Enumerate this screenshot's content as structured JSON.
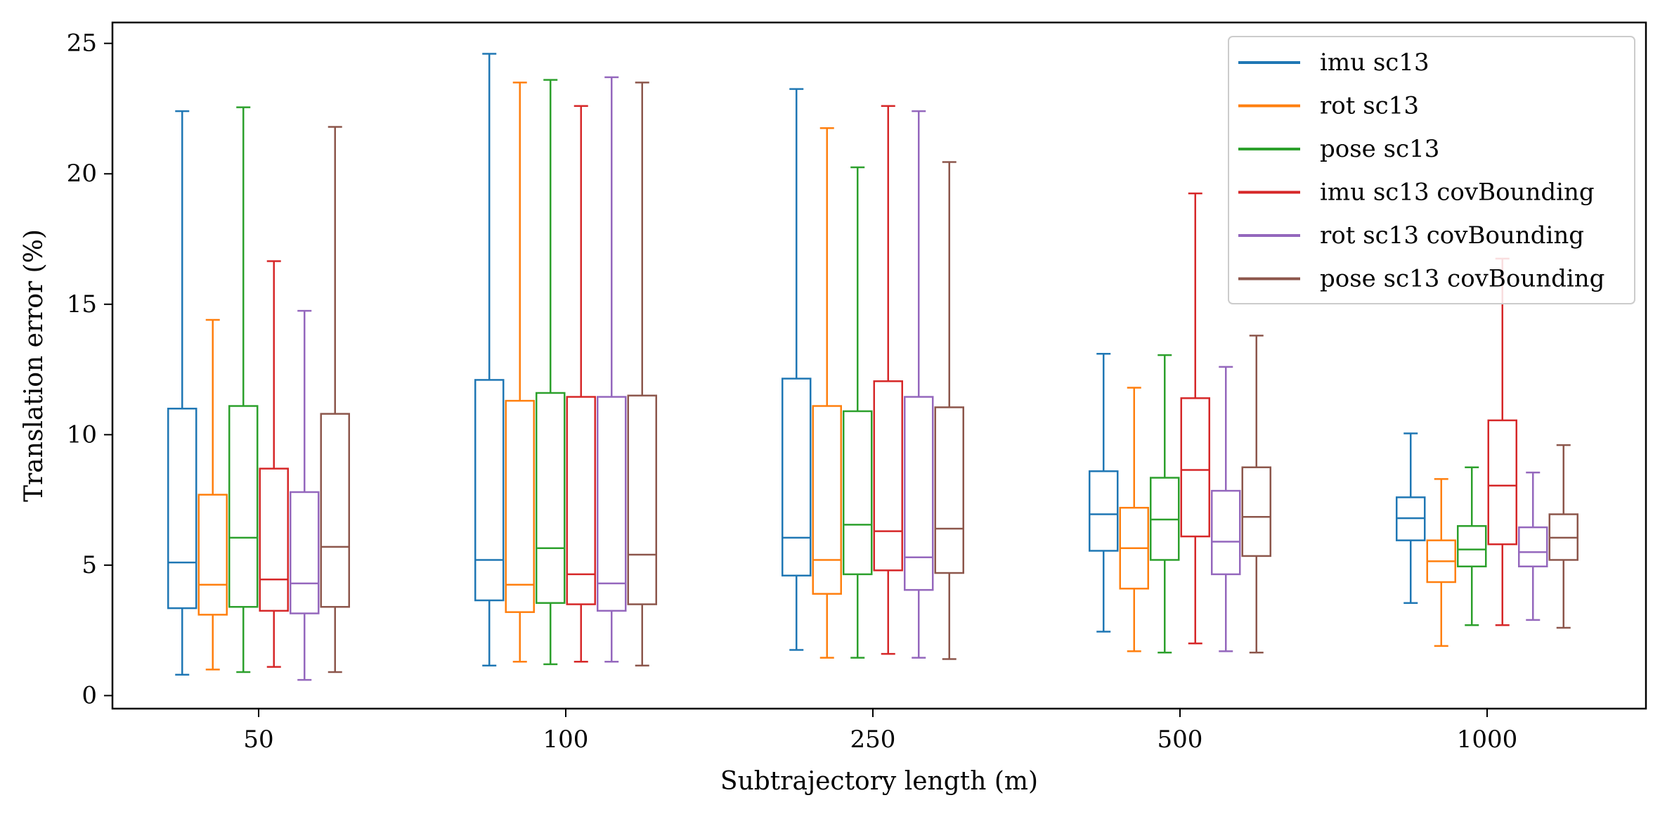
{
  "chart_data": {
    "type": "box",
    "title": "",
    "xlabel": "Subtrajectory length (m)",
    "ylabel": "Translation error (%)",
    "ylim": [
      -0.5,
      25.8
    ],
    "yticks": [
      0,
      5,
      10,
      15,
      20,
      25
    ],
    "categories": [
      "50",
      "100",
      "250",
      "500",
      "1000"
    ],
    "legend_position": "upper-right",
    "grid": false,
    "series": [
      {
        "name": "imu sc13",
        "color": "#1f77b4",
        "boxes": [
          {
            "whislo": 0.8,
            "q1": 3.35,
            "med": 5.1,
            "q3": 11.0,
            "whishi": 22.4
          },
          {
            "whislo": 1.15,
            "q1": 3.65,
            "med": 5.2,
            "q3": 12.1,
            "whishi": 24.6
          },
          {
            "whislo": 1.75,
            "q1": 4.6,
            "med": 6.05,
            "q3": 12.15,
            "whishi": 23.25
          },
          {
            "whislo": 2.45,
            "q1": 5.55,
            "med": 6.95,
            "q3": 8.6,
            "whishi": 13.1
          },
          {
            "whislo": 3.55,
            "q1": 5.95,
            "med": 6.8,
            "q3": 7.6,
            "whishi": 10.05
          }
        ]
      },
      {
        "name": "rot sc13",
        "color": "#ff7f0e",
        "boxes": [
          {
            "whislo": 1.0,
            "q1": 3.1,
            "med": 4.25,
            "q3": 7.7,
            "whishi": 14.4
          },
          {
            "whislo": 1.3,
            "q1": 3.2,
            "med": 4.25,
            "q3": 11.3,
            "whishi": 23.5
          },
          {
            "whislo": 1.45,
            "q1": 3.9,
            "med": 5.2,
            "q3": 11.1,
            "whishi": 21.75
          },
          {
            "whislo": 1.7,
            "q1": 4.1,
            "med": 5.65,
            "q3": 7.2,
            "whishi": 11.8
          },
          {
            "whislo": 1.9,
            "q1": 4.35,
            "med": 5.15,
            "q3": 5.95,
            "whishi": 8.3
          }
        ]
      },
      {
        "name": "pose sc13",
        "color": "#2ca02c",
        "boxes": [
          {
            "whislo": 0.9,
            "q1": 3.4,
            "med": 6.05,
            "q3": 11.1,
            "whishi": 22.55
          },
          {
            "whislo": 1.2,
            "q1": 3.55,
            "med": 5.65,
            "q3": 11.6,
            "whishi": 23.6
          },
          {
            "whislo": 1.45,
            "q1": 4.65,
            "med": 6.55,
            "q3": 10.9,
            "whishi": 20.25
          },
          {
            "whislo": 1.65,
            "q1": 5.2,
            "med": 6.75,
            "q3": 8.35,
            "whishi": 13.05
          },
          {
            "whislo": 2.7,
            "q1": 4.95,
            "med": 5.6,
            "q3": 6.5,
            "whishi": 8.75
          }
        ]
      },
      {
        "name": "imu sc13 covBounding",
        "color": "#d62728",
        "boxes": [
          {
            "whislo": 1.1,
            "q1": 3.25,
            "med": 4.45,
            "q3": 8.7,
            "whishi": 16.65
          },
          {
            "whislo": 1.3,
            "q1": 3.5,
            "med": 4.65,
            "q3": 11.45,
            "whishi": 22.6
          },
          {
            "whislo": 1.6,
            "q1": 4.8,
            "med": 6.3,
            "q3": 12.05,
            "whishi": 22.6
          },
          {
            "whislo": 2.0,
            "q1": 6.1,
            "med": 8.65,
            "q3": 11.4,
            "whishi": 19.25
          },
          {
            "whislo": 2.7,
            "q1": 5.8,
            "med": 8.05,
            "q3": 10.55,
            "whishi": 16.75
          }
        ]
      },
      {
        "name": "rot sc13 covBounding",
        "color": "#9467bd",
        "boxes": [
          {
            "whislo": 0.6,
            "q1": 3.15,
            "med": 4.3,
            "q3": 7.8,
            "whishi": 14.75
          },
          {
            "whislo": 1.3,
            "q1": 3.25,
            "med": 4.3,
            "q3": 11.45,
            "whishi": 23.7
          },
          {
            "whislo": 1.45,
            "q1": 4.05,
            "med": 5.3,
            "q3": 11.45,
            "whishi": 22.4
          },
          {
            "whislo": 1.7,
            "q1": 4.65,
            "med": 5.9,
            "q3": 7.85,
            "whishi": 12.6
          },
          {
            "whislo": 2.9,
            "q1": 4.95,
            "med": 5.5,
            "q3": 6.45,
            "whishi": 8.55
          }
        ]
      },
      {
        "name": "pose sc13 covBounding",
        "color": "#8c564b",
        "boxes": [
          {
            "whislo": 0.9,
            "q1": 3.4,
            "med": 5.7,
            "q3": 10.8,
            "whishi": 21.8
          },
          {
            "whislo": 1.15,
            "q1": 3.5,
            "med": 5.4,
            "q3": 11.5,
            "whishi": 23.5
          },
          {
            "whislo": 1.4,
            "q1": 4.7,
            "med": 6.4,
            "q3": 11.05,
            "whishi": 20.45
          },
          {
            "whislo": 1.65,
            "q1": 5.35,
            "med": 6.85,
            "q3": 8.75,
            "whishi": 13.8
          },
          {
            "whislo": 2.6,
            "q1": 5.2,
            "med": 6.05,
            "q3": 6.95,
            "whishi": 9.6
          }
        ]
      }
    ]
  }
}
